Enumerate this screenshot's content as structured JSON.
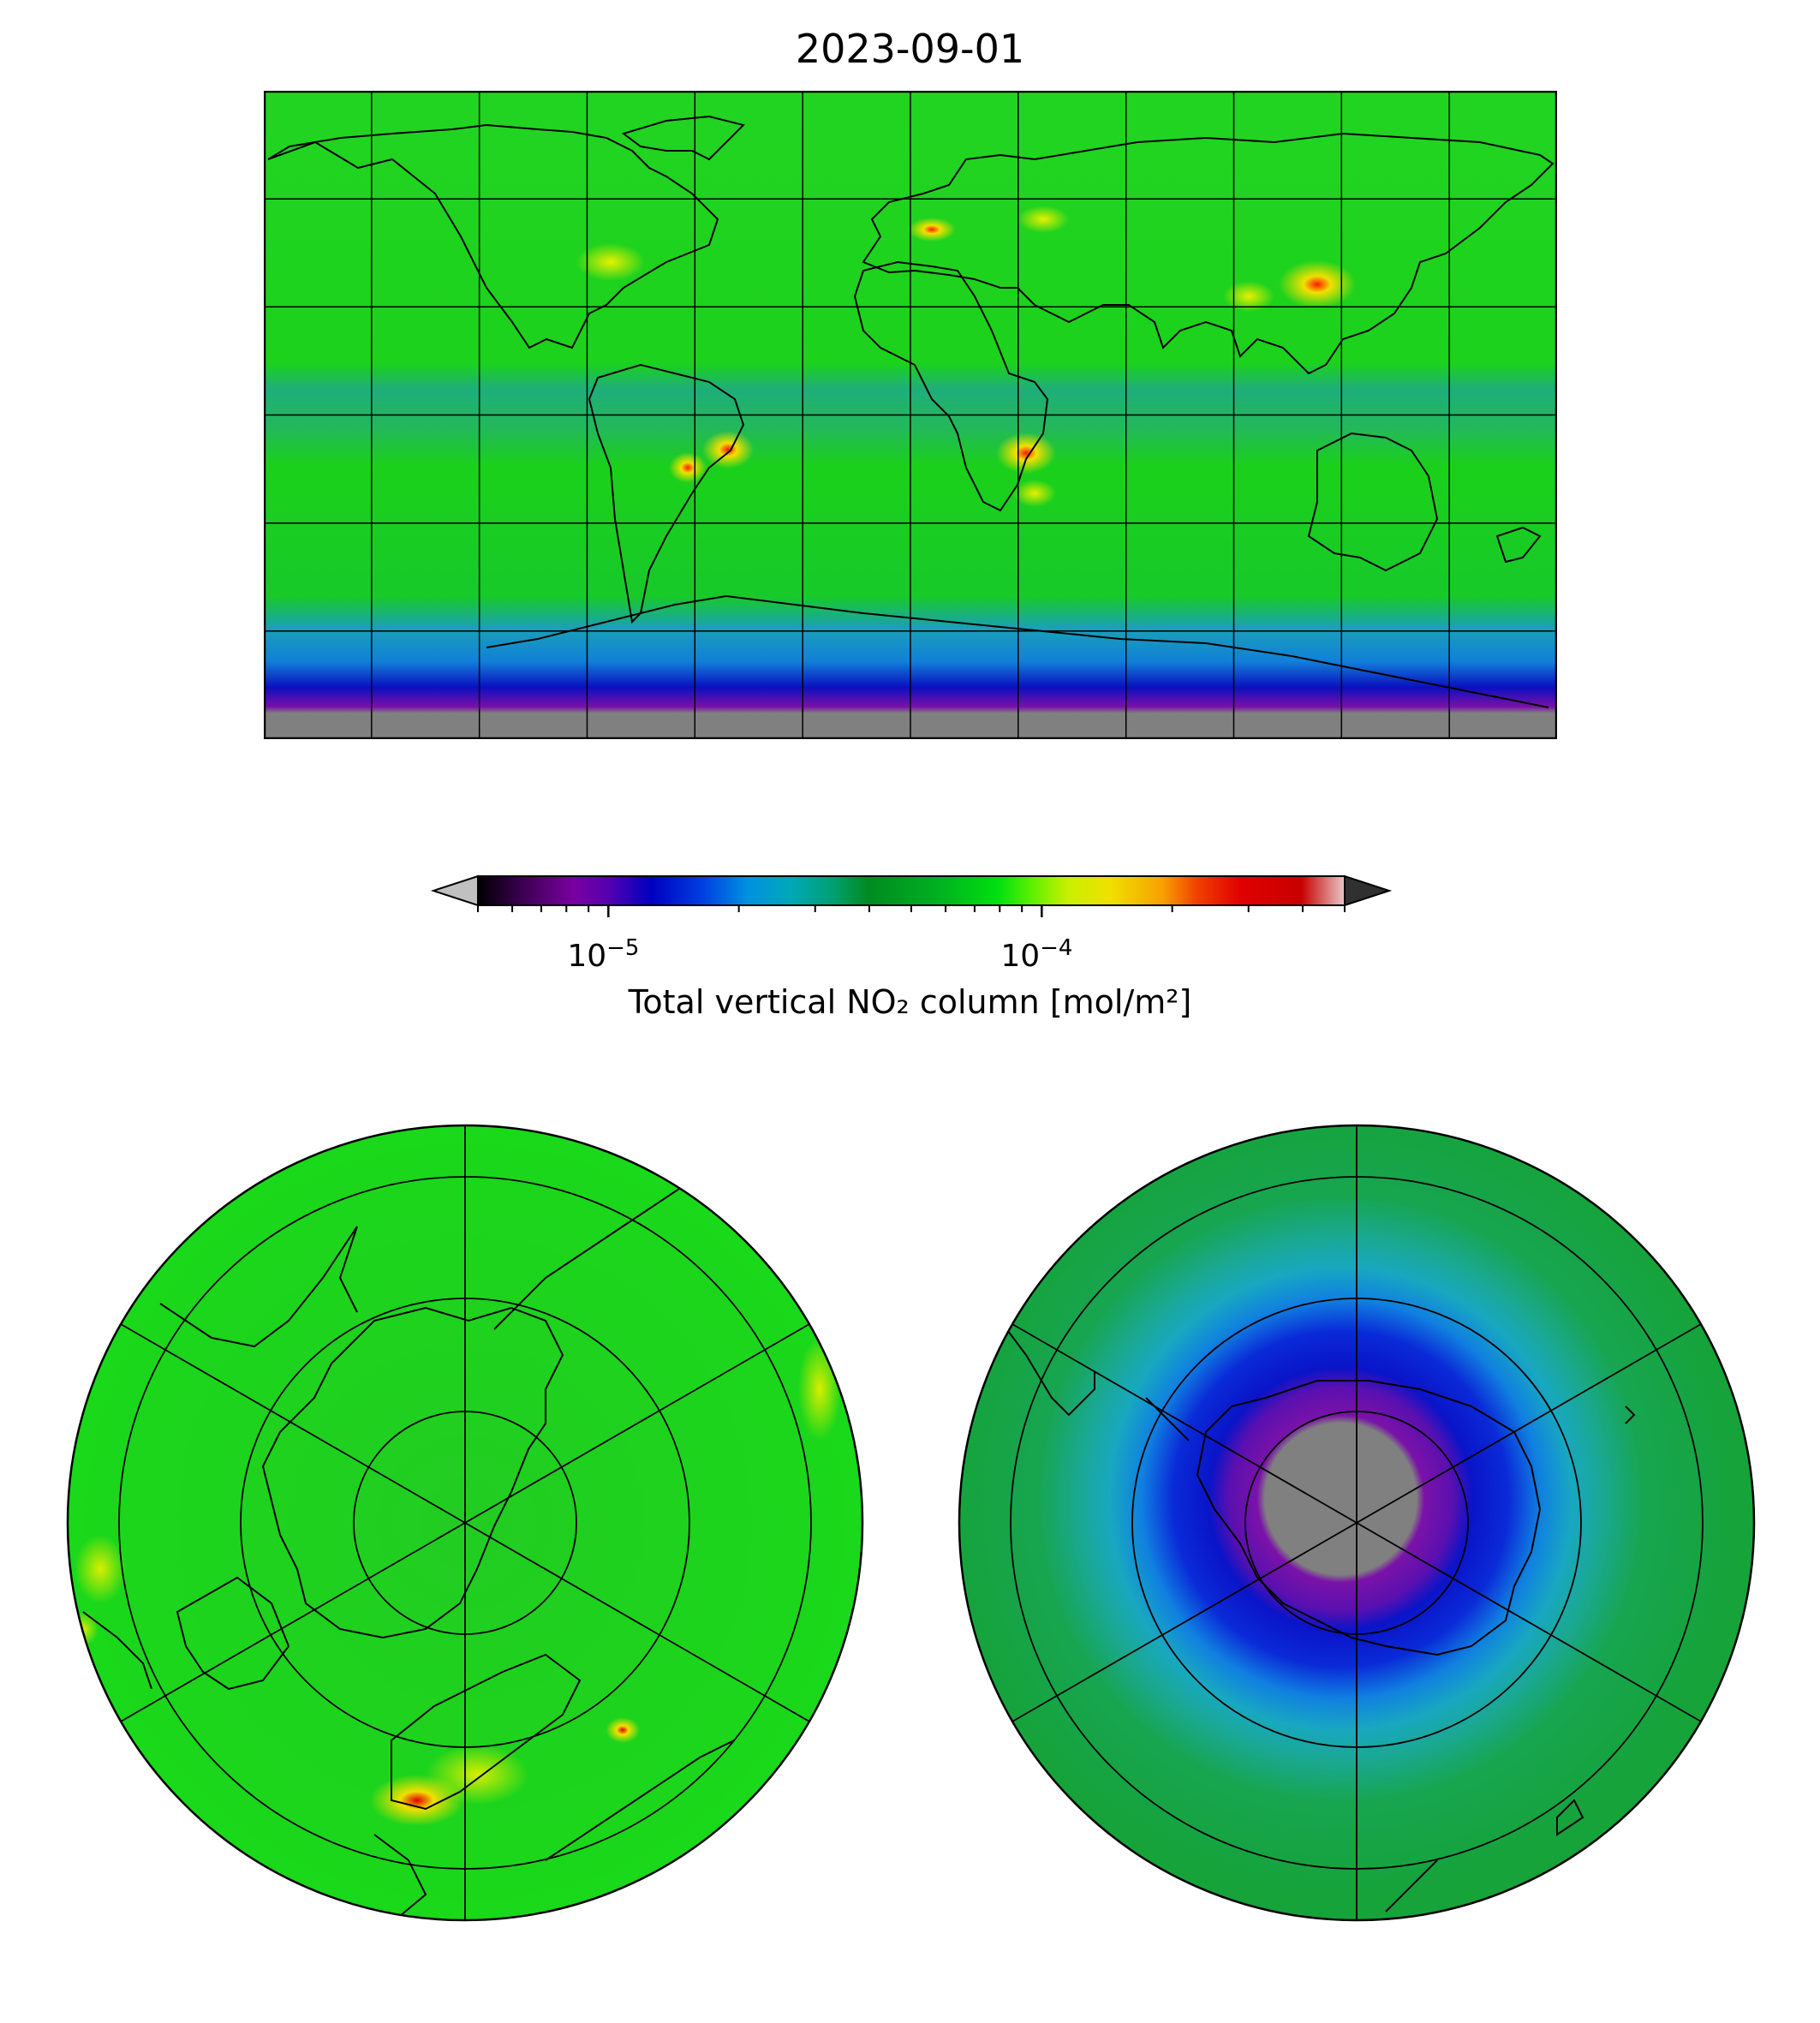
{
  "title": "2023-09-01",
  "colorbar": {
    "label": "Total vertical NO₂ column [mol/m²]",
    "scale": "log",
    "range": [
      5e-06,
      0.0005
    ],
    "extend": "both",
    "major_ticks": [
      {
        "value": 1e-05,
        "label_base": "10",
        "label_exp": "−5"
      },
      {
        "value": 0.0001,
        "label_base": "10",
        "label_exp": "−4"
      }
    ],
    "minor_ticks": [
      5e-06,
      6e-06,
      7e-06,
      8e-06,
      9e-06,
      2e-05,
      3e-05,
      4e-05,
      5e-05,
      6e-05,
      7e-05,
      8e-05,
      9e-05,
      0.0002,
      0.0003,
      0.0004,
      0.0005
    ],
    "colors": [
      "#000000",
      "#3a0050",
      "#7a00a0",
      "#5500b0",
      "#0000c0",
      "#0040e0",
      "#0090e0",
      "#00a8b8",
      "#00a070",
      "#008a20",
      "#00b020",
      "#00e010",
      "#60f000",
      "#c8f000",
      "#f0e000",
      "#f8a000",
      "#f04000",
      "#e00000",
      "#c80000",
      "#e8c8c8"
    ],
    "under_color": "#c0c0c0",
    "over_color": "#303030"
  },
  "maps": {
    "world": {
      "projection": "Plate Carree",
      "lon_range": [
        -180,
        180
      ],
      "lat_range": [
        -90,
        90
      ],
      "gridlines_lon_step": 30,
      "gridlines_lat_step": 30,
      "no_data_color": "#808080"
    },
    "north_polar": {
      "projection": "North Polar Stereographic"
    },
    "south_polar": {
      "projection": "South Polar Stereographic"
    }
  },
  "colors": {
    "background_green": "#1bd81b",
    "low_teal": "#1aa88a",
    "ozone_blue": "#1a2bd8",
    "purple": "#7a12a8",
    "no_data": "#808080",
    "hotspot_yellow": "#f0e000",
    "hotspot_red": "#e00000"
  }
}
